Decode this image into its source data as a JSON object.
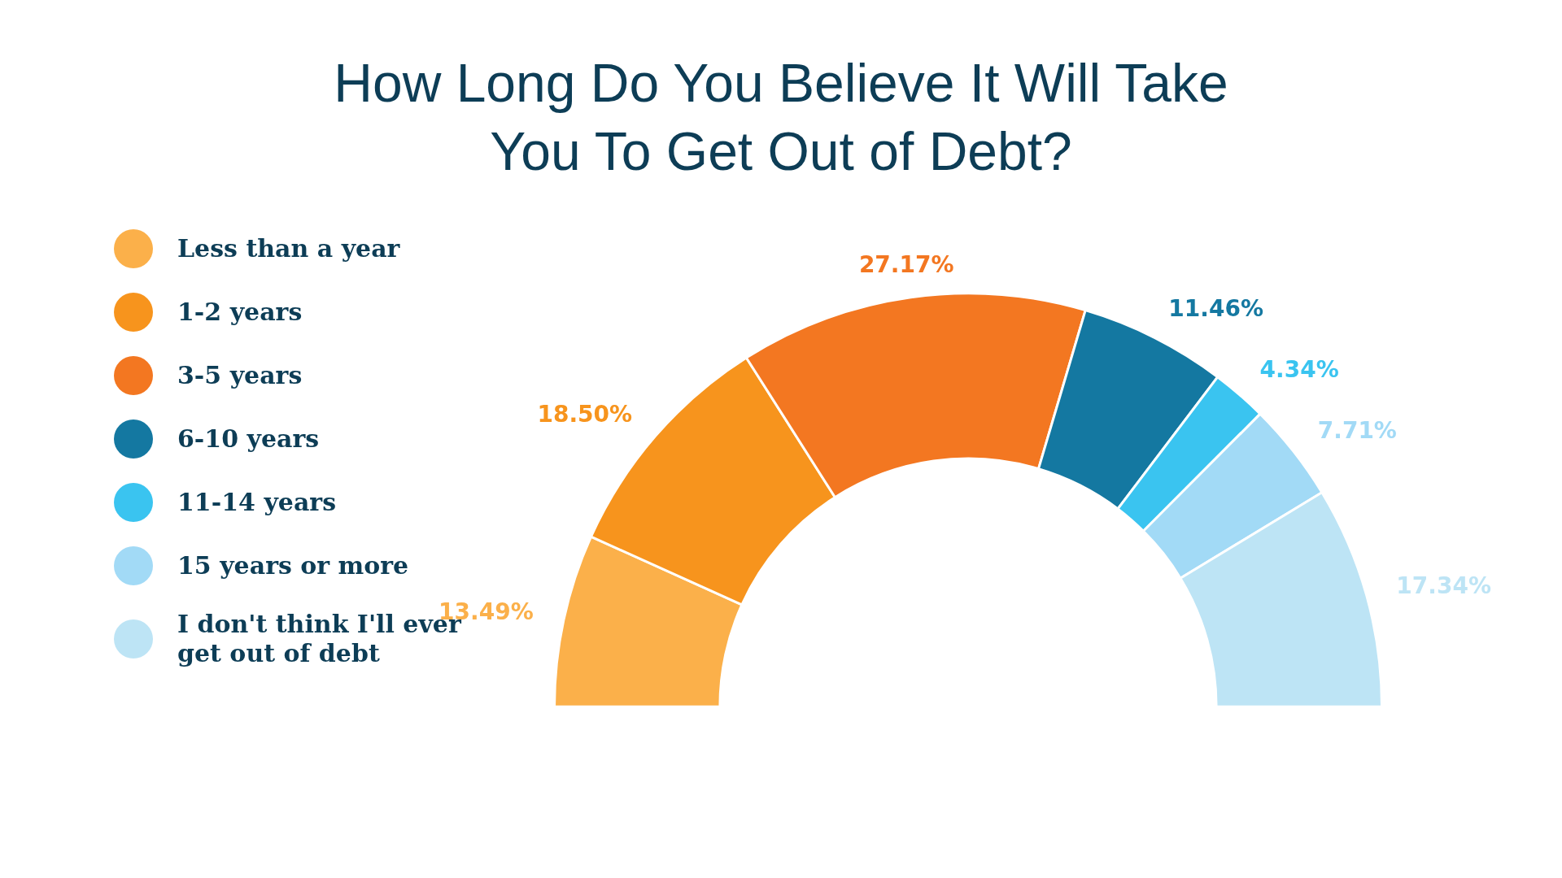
{
  "chart_data": {
    "type": "donut",
    "title": "How Long Do You Believe It Will Take You To Get Out of Debt?",
    "categories": [
      "Less than a year",
      "1-2 years",
      "3-5 years",
      "6-10 years",
      "11-14 years",
      "15 years or more",
      "I don't think I'll ever get out of debt"
    ],
    "values": [
      13.49,
      18.5,
      27.17,
      11.46,
      4.34,
      7.71,
      17.34
    ],
    "colors": [
      "#fbb04a",
      "#f7941d",
      "#f37721",
      "#1478a1",
      "#3ac4f0",
      "#a2daf6",
      "#bde4f5"
    ],
    "value_labels": [
      "13.49%",
      "18.50%",
      "27.17%",
      "11.46%",
      "4.34%",
      "7.71%",
      "17.34%"
    ],
    "legend": "left"
  }
}
